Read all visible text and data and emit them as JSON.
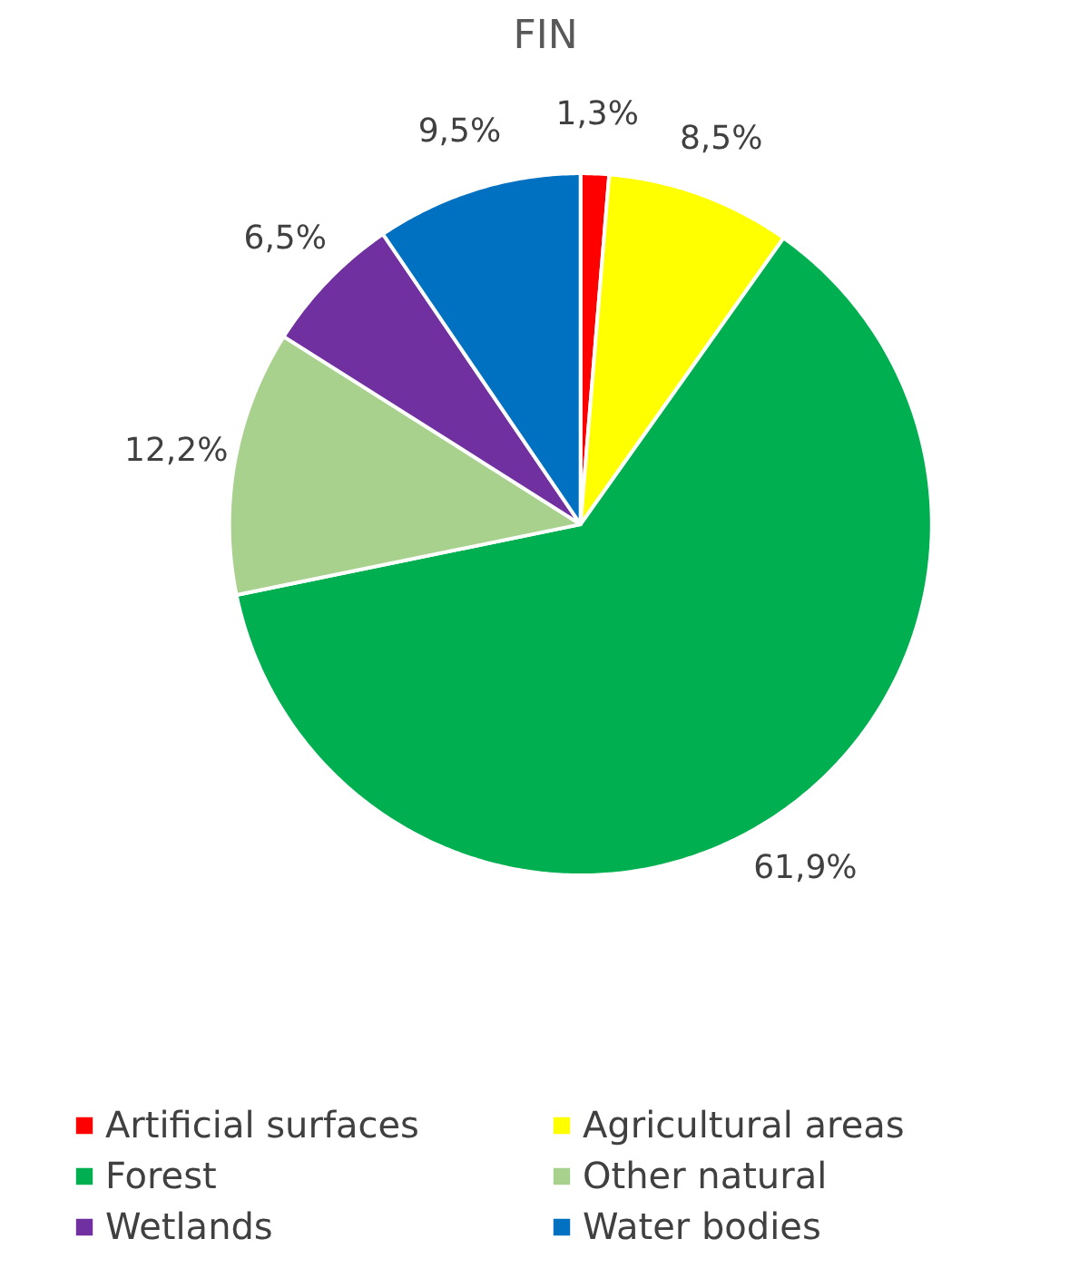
{
  "chart_data": {
    "type": "pie",
    "title": "FIN",
    "categories": [
      "Artificial surfaces",
      "Agricultural areas",
      "Forest",
      "Other natural",
      "Wetlands",
      "Water bodies"
    ],
    "values": [
      1.3,
      8.5,
      61.9,
      12.2,
      6.5,
      9.5
    ],
    "colors": [
      "#ff0000",
      "#ffff00",
      "#00b050",
      "#a9d18e",
      "#7030a0",
      "#0070c0"
    ],
    "value_labels": [
      "1,3%",
      "8,5%",
      "61,9%",
      "12,2%",
      "6,5%",
      "9,5%"
    ],
    "legend": "bottom"
  }
}
